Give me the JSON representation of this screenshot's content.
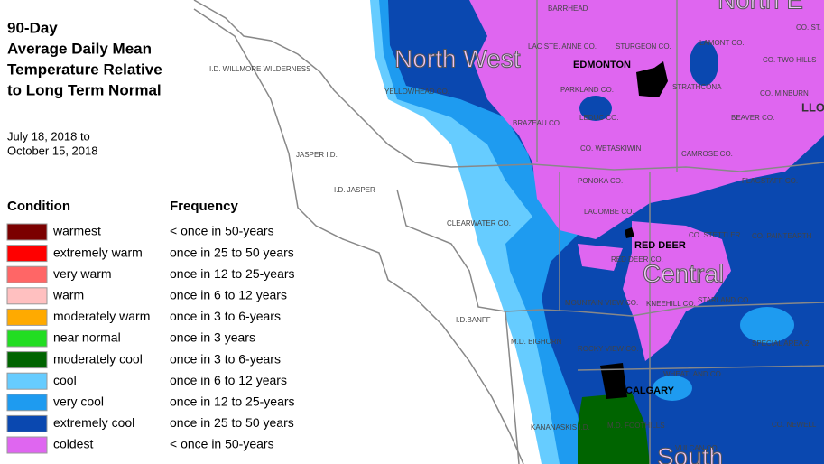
{
  "title": [
    "90-Day",
    "Average Daily Mean",
    "Temperature Relative",
    "to Long Term Normal"
  ],
  "dates": [
    "July 18, 2018 to",
    "October 15, 2018"
  ],
  "legend": {
    "condition_header": "Condition",
    "frequency_header": "Frequency",
    "rows": [
      {
        "condition": "warmest",
        "frequency": "< once in 50-years",
        "color": "#7b0000"
      },
      {
        "condition": "extremely warm",
        "frequency": "once in 25 to 50 years",
        "color": "#ff0000"
      },
      {
        "condition": "very warm",
        "frequency": "once in 12 to 25-years",
        "color": "#ff6666"
      },
      {
        "condition": "warm",
        "frequency": "once in 6 to 12 years",
        "color": "#ffc0c0"
      },
      {
        "condition": "moderately warm",
        "frequency": "once in 3 to 6-years",
        "color": "#ffaa00"
      },
      {
        "condition": "near normal",
        "frequency": "once in 3 years",
        "color": "#22dd22"
      },
      {
        "condition": "moderately cool",
        "frequency": "once in 3 to 6-years",
        "color": "#006400"
      },
      {
        "condition": "cool",
        "frequency": "once in 6 to 12 years",
        "color": "#66ccff"
      },
      {
        "condition": "very cool",
        "frequency": "once in 12 to 25-years",
        "color": "#1e9bf0"
      },
      {
        "condition": "extremely cool",
        "frequency": "once in 25 to 50 years",
        "color": "#0a48b0"
      },
      {
        "condition": "coldest",
        "frequency": "< once in 50-years",
        "color": "#df66f0"
      }
    ]
  },
  "map": {
    "regions": [
      "North West",
      "North E",
      "Central",
      "South"
    ],
    "cities": [
      "EDMONTON",
      "RED DEER",
      "CALGARY"
    ],
    "counties": [
      "BARRHEAD",
      "LAC STE. ANNE CO.",
      "STURGEON CO.",
      "LAMONT CO.",
      "CO. TWO HILLS",
      "CO. ST.",
      "I.D. WILLMORE WILDERNESS",
      "YELLOWHEAD CO.",
      "PARKLAND CO.",
      "STRATHCONA",
      "LEDUC CO.",
      "BEAVER CO.",
      "CO. MINBURN",
      "LLO",
      "BRAZEAU CO.",
      "CO. WETASKIWIN",
      "CAMROSE CO.",
      "JASPER I.D.",
      "I.D. JASPER",
      "PONOKA CO.",
      "FLAGSTAFF CO.",
      "CLEARWATER CO.",
      "LACOMBE CO.",
      "CO. STETTLER",
      "CO. PAINTEARTH",
      "RED DEER CO.",
      "MOUNTAIN VIEW CO.",
      "KNEEHILL CO.",
      "STARLAND CO.",
      "I.D.BANFF",
      "M.D. BIGHORN",
      "ROCKY VIEW CO.",
      "SPECIAL AREA 2",
      "WHEATLAND CO.",
      "KANANASKIS I.D.",
      "M.D. FOOTHILLS",
      "CO. NEWELL",
      "VULCAN CO."
    ]
  }
}
